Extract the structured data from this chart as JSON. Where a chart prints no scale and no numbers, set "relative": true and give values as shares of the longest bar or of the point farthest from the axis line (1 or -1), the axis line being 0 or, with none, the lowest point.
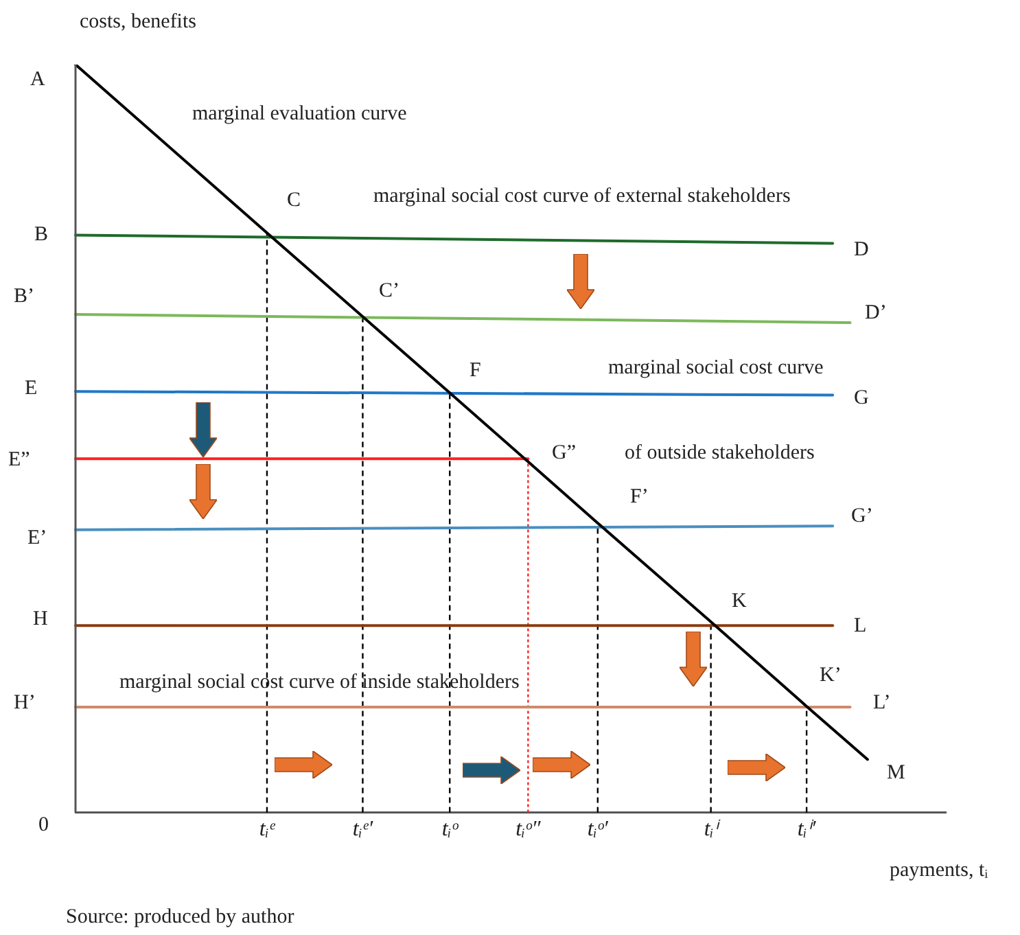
{
  "chart_data": {
    "type": "line",
    "relative": true,
    "marker": "none",
    "xlabel": "payments, tᵢ",
    "ylabel": "costs, benefits",
    "categories": [
      null,
      null,
      null,
      null,
      null,
      null,
      null,
      null,
      null,
      null,
      null,
      null,
      null,
      null,
      null,
      null,
      null,
      null,
      null,
      null,
      null,
      null,
      "tᵢᵉ",
      null,
      null,
      null,
      null,
      null,
      null,
      null,
      null,
      null,
      null,
      "tᵢᵉ′",
      null,
      null,
      null,
      null,
      null,
      null,
      null,
      null,
      null,
      "tᵢᵒ",
      null,
      null,
      null,
      null,
      null,
      null,
      null,
      null,
      "tᵢᵒ″",
      null,
      null,
      null,
      null,
      null,
      null,
      null,
      "tᵢᵒ′",
      null,
      null,
      null,
      null,
      null,
      null,
      null,
      null,
      null,
      null,
      null,
      null,
      "tᵢⁱ",
      null,
      null,
      null,
      null,
      null,
      null,
      null,
      null,
      null,
      null,
      "tᵢⁱ′",
      null,
      null,
      null,
      null,
      null,
      null,
      null,
      null,
      null,
      null,
      null,
      null,
      null,
      null,
      null,
      null
    ],
    "series": [
      {
        "color": "#000000",
        "values": [
          1,
          null,
          null,
          null,
          null,
          null,
          null,
          null,
          null,
          null,
          null,
          null,
          null,
          null,
          null,
          null,
          null,
          null,
          null,
          null,
          null,
          null,
          0.775,
          null,
          null,
          null,
          null,
          null,
          null,
          null,
          null,
          null,
          null,
          0.663,
          null,
          null,
          null,
          null,
          null,
          null,
          null,
          null,
          null,
          0.561,
          null,
          null,
          null,
          null,
          null,
          null,
          null,
          null,
          0.469,
          null,
          null,
          null,
          null,
          null,
          null,
          null,
          0.387,
          null,
          null,
          null,
          null,
          null,
          null,
          null,
          null,
          null,
          null,
          null,
          null,
          0.255,
          null,
          null,
          null,
          null,
          null,
          null,
          null,
          null,
          null,
          null,
          0.142,
          null,
          null,
          null,
          null,
          null,
          null,
          0.071,
          null,
          null,
          null,
          null,
          null,
          null,
          null,
          null,
          null
        ]
      },
      {
        "color": "#1e6b2a",
        "values": [
          0.772,
          null,
          null,
          null,
          null,
          null,
          null,
          null,
          null,
          null,
          null,
          null,
          null,
          null,
          null,
          null,
          null,
          null,
          null,
          null,
          null,
          null,
          null,
          null,
          null,
          null,
          null,
          null,
          null,
          null,
          null,
          null,
          null,
          null,
          null,
          null,
          null,
          null,
          null,
          null,
          null,
          null,
          null,
          null,
          null,
          null,
          null,
          null,
          null,
          null,
          null,
          null,
          null,
          null,
          null,
          null,
          null,
          null,
          null,
          null,
          null,
          null,
          null,
          null,
          null,
          null,
          null,
          null,
          null,
          null,
          null,
          null,
          null,
          null,
          null,
          null,
          null,
          null,
          null,
          null,
          null,
          null,
          null,
          null,
          null,
          null,
          null,
          0.761,
          null,
          null,
          null,
          null,
          null,
          null,
          null,
          null,
          null,
          null,
          null,
          null,
          null
        ]
      },
      {
        "color": "#7cb85c",
        "values": [
          0.666,
          null,
          null,
          null,
          null,
          null,
          null,
          null,
          null,
          null,
          null,
          null,
          null,
          null,
          null,
          null,
          null,
          null,
          null,
          null,
          null,
          null,
          null,
          null,
          null,
          null,
          null,
          null,
          null,
          null,
          null,
          null,
          null,
          null,
          null,
          null,
          null,
          null,
          null,
          null,
          null,
          null,
          null,
          null,
          null,
          null,
          null,
          null,
          null,
          null,
          null,
          null,
          null,
          null,
          null,
          null,
          null,
          null,
          null,
          null,
          null,
          null,
          null,
          null,
          null,
          null,
          null,
          null,
          null,
          null,
          null,
          null,
          null,
          null,
          null,
          null,
          null,
          null,
          null,
          null,
          null,
          null,
          null,
          null,
          null,
          null,
          null,
          null,
          null,
          0.655,
          null,
          null,
          null,
          null,
          null,
          null,
          null,
          null,
          null,
          null,
          null
        ]
      },
      {
        "color": "#1f78c8",
        "values": [
          0.563,
          null,
          null,
          null,
          null,
          null,
          null,
          null,
          null,
          null,
          null,
          null,
          null,
          null,
          null,
          null,
          null,
          null,
          null,
          null,
          null,
          null,
          null,
          null,
          null,
          null,
          null,
          null,
          null,
          null,
          null,
          null,
          null,
          null,
          null,
          null,
          null,
          null,
          null,
          null,
          null,
          null,
          null,
          null,
          null,
          null,
          null,
          null,
          null,
          null,
          null,
          null,
          null,
          null,
          null,
          null,
          null,
          null,
          null,
          null,
          null,
          null,
          null,
          null,
          null,
          null,
          null,
          null,
          null,
          null,
          null,
          null,
          null,
          null,
          null,
          null,
          null,
          null,
          null,
          null,
          null,
          null,
          null,
          null,
          null,
          null,
          null,
          0.558,
          null,
          null,
          null,
          null,
          null,
          null,
          null,
          null,
          null,
          null,
          null,
          null,
          null
        ]
      },
      {
        "color": "#ff2020",
        "values": [
          0.473,
          null,
          null,
          null,
          null,
          null,
          null,
          null,
          null,
          null,
          null,
          null,
          null,
          null,
          null,
          null,
          null,
          null,
          null,
          null,
          null,
          null,
          null,
          null,
          null,
          null,
          null,
          null,
          null,
          null,
          null,
          null,
          null,
          null,
          null,
          null,
          null,
          null,
          null,
          null,
          null,
          null,
          null,
          null,
          null,
          null,
          null,
          null,
          null,
          null,
          null,
          null,
          0.473,
          null,
          null,
          null,
          null,
          null,
          null,
          null,
          null,
          null,
          null,
          null,
          null,
          null,
          null,
          null,
          null,
          null,
          null,
          null,
          null,
          null,
          null,
          null,
          null,
          null,
          null,
          null,
          null,
          null,
          null,
          null,
          null,
          null,
          null,
          null,
          null,
          null,
          null,
          null,
          null,
          null,
          null,
          null,
          null,
          null,
          null,
          null,
          null
        ]
      },
      {
        "color": "#4a8fc0",
        "values": [
          0.378,
          null,
          null,
          null,
          null,
          null,
          null,
          null,
          null,
          null,
          null,
          null,
          null,
          null,
          null,
          null,
          null,
          null,
          null,
          null,
          null,
          null,
          null,
          null,
          null,
          null,
          null,
          null,
          null,
          null,
          null,
          null,
          null,
          null,
          null,
          null,
          null,
          null,
          null,
          null,
          null,
          null,
          null,
          null,
          null,
          null,
          null,
          null,
          null,
          null,
          null,
          null,
          null,
          null,
          null,
          null,
          null,
          null,
          null,
          null,
          null,
          null,
          null,
          null,
          null,
          null,
          null,
          null,
          null,
          null,
          null,
          null,
          null,
          null,
          null,
          null,
          null,
          null,
          null,
          null,
          null,
          null,
          null,
          null,
          null,
          null,
          null,
          0.383,
          null,
          null,
          null,
          null,
          null,
          null,
          null,
          null,
          null,
          null,
          null,
          null,
          null
        ]
      },
      {
        "color": "#8b3a0f",
        "values": [
          0.25,
          null,
          null,
          null,
          null,
          null,
          null,
          null,
          null,
          null,
          null,
          null,
          null,
          null,
          null,
          null,
          null,
          null,
          null,
          null,
          null,
          null,
          null,
          null,
          null,
          null,
          null,
          null,
          null,
          null,
          null,
          null,
          null,
          null,
          null,
          null,
          null,
          null,
          null,
          null,
          null,
          null,
          null,
          null,
          null,
          null,
          null,
          null,
          null,
          null,
          null,
          null,
          null,
          null,
          null,
          null,
          null,
          null,
          null,
          null,
          null,
          null,
          null,
          null,
          null,
          null,
          null,
          null,
          null,
          null,
          null,
          null,
          null,
          null,
          null,
          null,
          null,
          null,
          null,
          null,
          null,
          null,
          null,
          null,
          null,
          null,
          null,
          0.25,
          null,
          null,
          null,
          null,
          null,
          null,
          null,
          null,
          null,
          null,
          null,
          null,
          null
        ]
      },
      {
        "color": "#d08a6a",
        "values": [
          0.141,
          null,
          null,
          null,
          null,
          null,
          null,
          null,
          null,
          null,
          null,
          null,
          null,
          null,
          null,
          null,
          null,
          null,
          null,
          null,
          null,
          null,
          null,
          null,
          null,
          null,
          null,
          null,
          null,
          null,
          null,
          null,
          null,
          null,
          null,
          null,
          null,
          null,
          null,
          null,
          null,
          null,
          null,
          null,
          null,
          null,
          null,
          null,
          null,
          null,
          null,
          null,
          null,
          null,
          null,
          null,
          null,
          null,
          null,
          null,
          null,
          null,
          null,
          null,
          null,
          null,
          null,
          null,
          null,
          null,
          null,
          null,
          null,
          null,
          null,
          null,
          null,
          null,
          null,
          null,
          null,
          null,
          null,
          null,
          null,
          null,
          null,
          null,
          null,
          0.141,
          null,
          null,
          null,
          null,
          null,
          null,
          null,
          null,
          null,
          null,
          null
        ]
      }
    ],
    "ref_lines": [
      {
        "axis": "x",
        "value": "tᵢᵉ",
        "color": "#000000",
        "line_style": "dashed"
      },
      {
        "axis": "x",
        "value": "tᵢᵉ′",
        "color": "#000000",
        "line_style": "dashed"
      },
      {
        "axis": "x",
        "value": "tᵢᵒ",
        "color": "#000000",
        "line_style": "dashed"
      },
      {
        "axis": "x",
        "value": "tᵢᵒ″",
        "color": "#ff2020",
        "line_style": "dotted"
      },
      {
        "axis": "x",
        "value": "tᵢᵒ′",
        "color": "#000000",
        "line_style": "dashed"
      },
      {
        "axis": "x",
        "value": "tᵢⁱ",
        "color": "#000000",
        "line_style": "dashed"
      },
      {
        "axis": "x",
        "value": "tᵢⁱ′",
        "color": "#000000",
        "line_style": "dashed"
      }
    ],
    "annotations": [
      "A",
      "B",
      "B’",
      "E",
      "E”",
      "E’",
      "H",
      "H’",
      "0",
      "marginal evaluation curve",
      "marginal social cost curve of external stakeholders",
      "marginal social cost curve",
      "of outside stakeholders",
      "marginal social cost curve of inside stakeholders",
      "C",
      "C’",
      "F",
      "G”",
      "F’",
      "K",
      "K’",
      "D",
      "D’",
      "G",
      "G’",
      "L",
      "L’",
      "M",
      "Source: produced by author"
    ]
  }
}
